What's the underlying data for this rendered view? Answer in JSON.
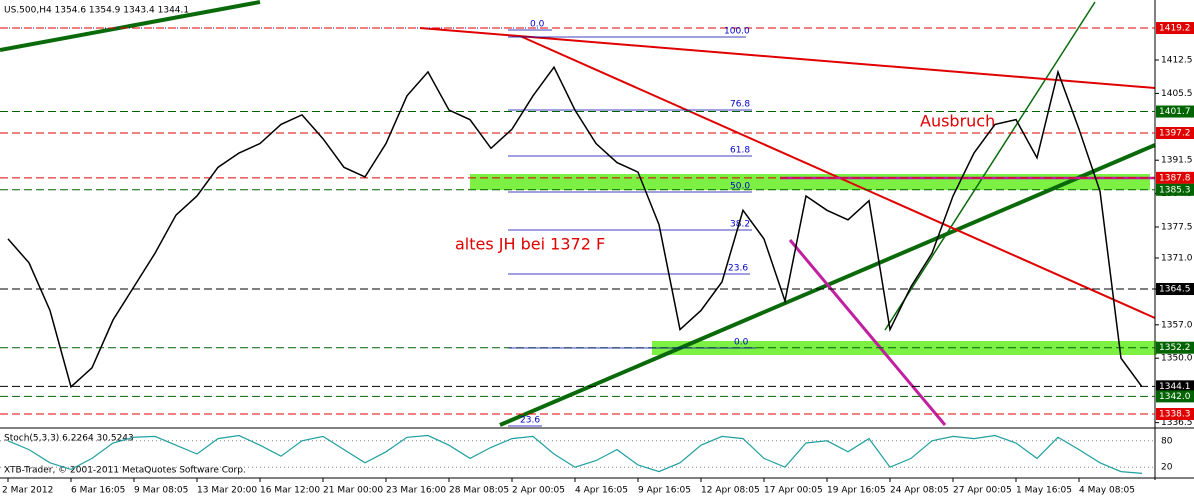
{
  "chart_data": {
    "type": "line",
    "title": "US.500,H4  1354.6 1354.9 1343.4 1344.1",
    "color": "#000000",
    "categories": [
      "2 Mar 2012",
      null,
      null,
      "6 Mar 16:05",
      null,
      null,
      "9 Mar 08:05",
      null,
      null,
      "13 Mar 20:00",
      null,
      null,
      "16 Mar 12:00",
      null,
      null,
      "21 Mar 00:00",
      null,
      null,
      "23 Mar 16:00",
      null,
      null,
      "28 Mar 08:05",
      null,
      null,
      "2 Apr 00:05",
      null,
      null,
      "4 Apr 16:05",
      null,
      null,
      "9 Apr 16:05",
      null,
      null,
      "12 Apr 08:05",
      null,
      null,
      "17 Apr 00:05",
      null,
      null,
      "19 Apr 16:05",
      null,
      null,
      "24 Apr 08:05",
      null,
      null,
      "27 Apr 00:05",
      null,
      null,
      "1 May 16:05",
      null,
      null,
      "4 May 08:05",
      null,
      null,
      null
    ],
    "values": [
      1375,
      1370,
      1360,
      1344,
      1348,
      1358,
      1365,
      1372,
      1380,
      1384,
      1390,
      1393,
      1395,
      1399,
      1401,
      1396,
      1390,
      1388,
      1395,
      1405,
      1410,
      1402,
      1400,
      1394,
      1398,
      1405,
      1411,
      1402,
      1395,
      1391,
      1389,
      1378,
      1356,
      1360,
      1366,
      1381,
      1375,
      1362,
      1384,
      1381,
      1379,
      1383,
      1356,
      1365,
      1372,
      1384,
      1393,
      1399,
      1400,
      1392,
      1410,
      1398,
      1385,
      1350,
      1344
    ],
    "ylim": [
      1336,
      1423.4
    ],
    "yticks": [
      1412.5,
      1405.5,
      1391.5,
      1384.5,
      1377.5,
      {
        "value": 1371,
        "label": "1371.0"
      },
      1364.5,
      {
        "value": 1357,
        "label": "1357.0"
      },
      {
        "value": 1350,
        "label": "1350.0"
      },
      1336.5
    ],
    "levels": [
      {
        "price": 1419.2,
        "color": "#e00000"
      },
      {
        "price": 1401.7,
        "color": "#006400"
      },
      {
        "price": 1397.2,
        "color": "#e00000"
      },
      {
        "price": 1387.8,
        "color": "#e00000"
      },
      {
        "price": 1385.3,
        "color": "#006400"
      },
      {
        "price": 1364.5,
        "color": "#000000"
      },
      {
        "price": 1352.2,
        "color": "#006400"
      },
      {
        "price": 1344.1,
        "color": "#000000"
      },
      {
        "price": 1342,
        "label": "1342.0",
        "color": "#006400"
      },
      {
        "price": 1338.3,
        "color": "#e00000"
      }
    ],
    "fib_labels": [
      "0.0",
      "100.0",
      "76.8",
      "61.8",
      "50.0",
      "38.2",
      "23.6",
      "0.0",
      "23.6"
    ],
    "annotations": [
      "altes JH bei 1372 F",
      "Ausbruch"
    ],
    "copyright": "XTB-Trader, © 2001-2011 MetaQuotes Software Corp.",
    "stochastic": {
      "title": "Stoch(5,3,3) 6.2264 30.5243",
      "color": "#20a0a0",
      "ylim": [
        0,
        100
      ],
      "yticks": [
        80,
        20
      ],
      "values": [
        80,
        60,
        30,
        15,
        40,
        75,
        88,
        90,
        70,
        50,
        85,
        92,
        70,
        45,
        80,
        90,
        60,
        30,
        55,
        88,
        92,
        70,
        40,
        65,
        85,
        90,
        50,
        20,
        35,
        60,
        25,
        10,
        30,
        70,
        90,
        85,
        40,
        20,
        75,
        80,
        55,
        85,
        20,
        40,
        80,
        90,
        85,
        92,
        75,
        40,
        88,
        60,
        30,
        10,
        6
      ]
    }
  }
}
